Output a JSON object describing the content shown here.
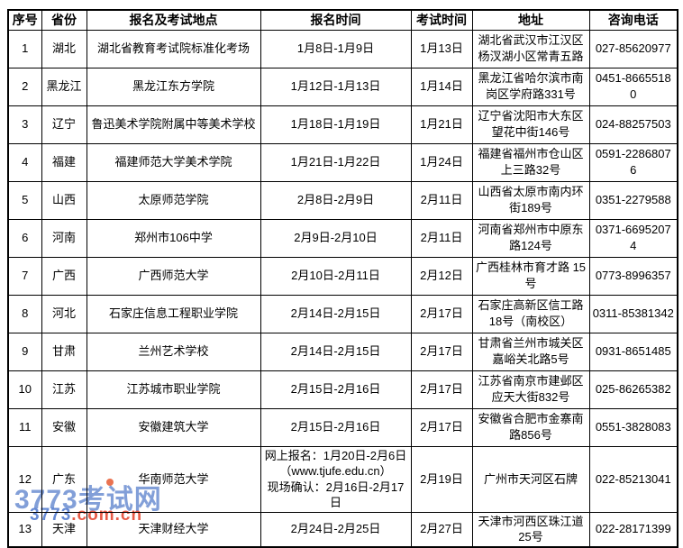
{
  "table": {
    "columns": [
      {
        "key": "num",
        "label": "序号"
      },
      {
        "key": "province",
        "label": "省份"
      },
      {
        "key": "location",
        "label": "报名及考试地点"
      },
      {
        "key": "reg_time",
        "label": "报名时间"
      },
      {
        "key": "exam_time",
        "label": "考试时间"
      },
      {
        "key": "address",
        "label": "地址"
      },
      {
        "key": "phone",
        "label": "咨询电话"
      }
    ],
    "rows": [
      {
        "num": "1",
        "province": "湖北",
        "location": "湖北省教育考试院标准化考场",
        "reg_time": "1月8日-1月9日",
        "exam_time": "1月13日",
        "address": "湖北省武汉市江汉区杨汊湖小区常青五路",
        "phone": "027-85620977"
      },
      {
        "num": "2",
        "province": "黑龙江",
        "location": "黑龙江东方学院",
        "reg_time": "1月12日-1月13日",
        "exam_time": "1月14日",
        "address": "黑龙江省哈尔滨市南岗区学府路331号",
        "phone": "0451-86655180"
      },
      {
        "num": "3",
        "province": "辽宁",
        "location": "鲁迅美术学院附属中等美术学校",
        "reg_time": "1月18日-1月19日",
        "exam_time": "1月21日",
        "address": "辽宁省沈阳市大东区望花中街146号",
        "phone": "024-88257503"
      },
      {
        "num": "4",
        "province": "福建",
        "location": "福建师范大学美术学院",
        "reg_time": "1月21日-1月22日",
        "exam_time": "1月24日",
        "address": "福建省福州市仓山区上三路32号",
        "phone": "0591-22868076"
      },
      {
        "num": "5",
        "province": "山西",
        "location": "太原师范学院",
        "reg_time": "2月8日-2月9日",
        "exam_time": "2月11日",
        "address": "山西省太原市南内环街189号",
        "phone": "0351-2279588"
      },
      {
        "num": "6",
        "province": "河南",
        "location": "郑州市106中学",
        "reg_time": "2月9日-2月10日",
        "exam_time": "2月11日",
        "address": "河南省郑州市中原东路124号",
        "phone": "0371-66952074"
      },
      {
        "num": "7",
        "province": "广西",
        "location": "广西师范大学",
        "reg_time": "2月10日-2月11日",
        "exam_time": "2月12日",
        "address": "广西桂林市育才路 15号",
        "phone": "0773-8996357"
      },
      {
        "num": "8",
        "province": "河北",
        "location": "石家庄信息工程职业学院",
        "reg_time": "2月14日-2月15日",
        "exam_time": "2月17日",
        "address": "石家庄高新区信工路18号（南校区）",
        "phone": "0311-85381342"
      },
      {
        "num": "9",
        "province": "甘肃",
        "location": "兰州艺术学校",
        "reg_time": "2月14日-2月15日",
        "exam_time": "2月17日",
        "address": "甘肃省兰州市城关区嘉峪关北路5号",
        "phone": "0931-8651485"
      },
      {
        "num": "10",
        "province": "江苏",
        "location": "江苏城市职业学院",
        "reg_time": "2月15日-2月16日",
        "exam_time": "2月17日",
        "address": "江苏省南京市建邺区应天大街832号",
        "phone": "025-86265382"
      },
      {
        "num": "11",
        "province": "安徽",
        "location": "安徽建筑大学",
        "reg_time": "2月15日-2月16日",
        "exam_time": "2月17日",
        "address": "安徽省合肥市金寨南路856号",
        "phone": "0551-3828083"
      },
      {
        "num": "12",
        "province": "广东",
        "location": "华南师范大学",
        "reg_time": [
          "网上报名：1月20日-2月6日",
          "（www.tjufe.edu.cn）",
          "现场确认：2月16日-2月17日"
        ],
        "exam_time": "2月19日",
        "address": "广州市天河区石牌",
        "phone": "022-85213041"
      },
      {
        "num": "13",
        "province": "天津",
        "location": "天津财经大学",
        "reg_time": "2月24日-2月25日",
        "exam_time": "2月27日",
        "address": "天津市河西区珠江道25号",
        "phone": "022-28171399"
      }
    ]
  },
  "watermark": {
    "line1": "3773考试网",
    "line2_prefix": "3773",
    "line2_suffix": ".com.cn",
    "color_blue": "#4b76cd",
    "color_red": "#e4442d"
  }
}
